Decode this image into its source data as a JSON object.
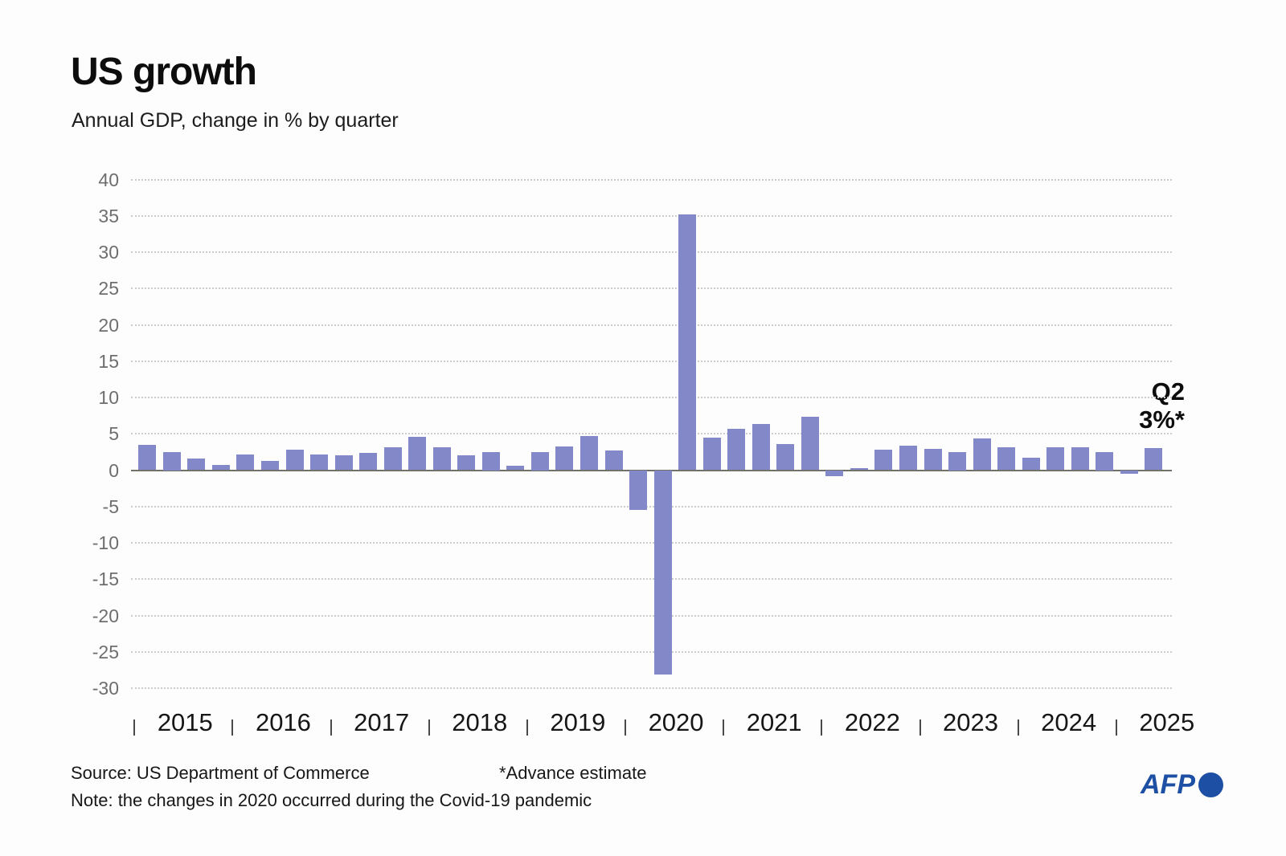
{
  "header": {
    "title": "US growth",
    "subtitle": "Annual GDP, change in % by quarter"
  },
  "annotation": {
    "line1": "Q2",
    "line2": "3%*"
  },
  "footer": {
    "source": "Source: US Department of Commerce",
    "estimate_note": "*Advance estimate",
    "note": "Note: the changes in 2020 occurred during the Covid-19 pandemic",
    "brand": "AFP"
  },
  "colors": {
    "bar": "#8389c8",
    "grid": "#cbcbcb",
    "zero_line": "#71716a",
    "y_axis_text": "#6e6e6e",
    "x_axis_text": "#161616",
    "brand_blue": "#1d4fa4",
    "background": "#fdfdfd",
    "text": "#0d0d0d"
  },
  "chart_data": {
    "type": "bar",
    "title": "US growth",
    "subtitle": "Annual GDP, change in % by quarter",
    "ylabel": "Annual GDP change in %",
    "ylim": [
      -30,
      40
    ],
    "ytick_step": 5,
    "yticks": [
      40,
      35,
      30,
      25,
      20,
      15,
      10,
      5,
      0,
      -5,
      -10,
      -15,
      -20,
      -25,
      -30
    ],
    "grid": "horizontal dotted",
    "legend_position": "none",
    "years": [
      "2015",
      "2016",
      "2017",
      "2018",
      "2019",
      "2020",
      "2021",
      "2022",
      "2023",
      "2024",
      "2025"
    ],
    "points": [
      {
        "year": "2015",
        "quarter": "Q1",
        "value": 3.5
      },
      {
        "year": "2015",
        "quarter": "Q2",
        "value": 2.5
      },
      {
        "year": "2015",
        "quarter": "Q3",
        "value": 1.6
      },
      {
        "year": "2015",
        "quarter": "Q4",
        "value": 0.7
      },
      {
        "year": "2016",
        "quarter": "Q1",
        "value": 2.2
      },
      {
        "year": "2016",
        "quarter": "Q2",
        "value": 1.3
      },
      {
        "year": "2016",
        "quarter": "Q3",
        "value": 2.8
      },
      {
        "year": "2016",
        "quarter": "Q4",
        "value": 2.2
      },
      {
        "year": "2017",
        "quarter": "Q1",
        "value": 2.0
      },
      {
        "year": "2017",
        "quarter": "Q2",
        "value": 2.4
      },
      {
        "year": "2017",
        "quarter": "Q3",
        "value": 3.2
      },
      {
        "year": "2017",
        "quarter": "Q4",
        "value": 4.6
      },
      {
        "year": "2018",
        "quarter": "Q1",
        "value": 3.2
      },
      {
        "year": "2018",
        "quarter": "Q2",
        "value": 2.0
      },
      {
        "year": "2018",
        "quarter": "Q3",
        "value": 2.5
      },
      {
        "year": "2018",
        "quarter": "Q4",
        "value": 0.6
      },
      {
        "year": "2019",
        "quarter": "Q1",
        "value": 2.5
      },
      {
        "year": "2019",
        "quarter": "Q2",
        "value": 3.3
      },
      {
        "year": "2019",
        "quarter": "Q3",
        "value": 4.7
      },
      {
        "year": "2019",
        "quarter": "Q4",
        "value": 2.7
      },
      {
        "year": "2020",
        "quarter": "Q1",
        "value": -5.5
      },
      {
        "year": "2020",
        "quarter": "Q2",
        "value": -28.1
      },
      {
        "year": "2020",
        "quarter": "Q3",
        "value": 35.2
      },
      {
        "year": "2020",
        "quarter": "Q4",
        "value": 4.5
      },
      {
        "year": "2021",
        "quarter": "Q1",
        "value": 5.7
      },
      {
        "year": "2021",
        "quarter": "Q2",
        "value": 6.4
      },
      {
        "year": "2021",
        "quarter": "Q3",
        "value": 3.6
      },
      {
        "year": "2021",
        "quarter": "Q4",
        "value": 7.4
      },
      {
        "year": "2022",
        "quarter": "Q1",
        "value": -0.8
      },
      {
        "year": "2022",
        "quarter": "Q2",
        "value": 0.3
      },
      {
        "year": "2022",
        "quarter": "Q3",
        "value": 2.8
      },
      {
        "year": "2022",
        "quarter": "Q4",
        "value": 3.4
      },
      {
        "year": "2023",
        "quarter": "Q1",
        "value": 2.9
      },
      {
        "year": "2023",
        "quarter": "Q2",
        "value": 2.5
      },
      {
        "year": "2023",
        "quarter": "Q3",
        "value": 4.4
      },
      {
        "year": "2023",
        "quarter": "Q4",
        "value": 3.2
      },
      {
        "year": "2024",
        "quarter": "Q1",
        "value": 1.7
      },
      {
        "year": "2024",
        "quarter": "Q2",
        "value": 3.1
      },
      {
        "year": "2024",
        "quarter": "Q3",
        "value": 3.2
      },
      {
        "year": "2024",
        "quarter": "Q4",
        "value": 2.5
      },
      {
        "year": "2025",
        "quarter": "Q1",
        "value": -0.5
      },
      {
        "year": "2025",
        "quarter": "Q2",
        "value": 3.0
      }
    ],
    "latest_point_label": "Q2 3%*"
  }
}
